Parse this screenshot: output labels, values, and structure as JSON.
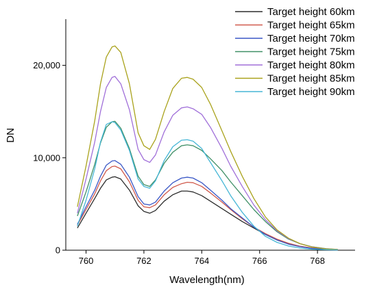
{
  "chart_data": {
    "type": "line",
    "title": "",
    "xlabel": "Wavelength(nm)",
    "ylabel": "DN",
    "xlim": [
      759.3,
      769.3
    ],
    "ylim": [
      0,
      25000
    ],
    "x_ticks": [
      760,
      762,
      764,
      766,
      768
    ],
    "x_tick_labels": [
      "760",
      "762",
      "764",
      "766",
      "768"
    ],
    "y_ticks": [
      0,
      10000,
      20000
    ],
    "y_tick_labels": [
      "0",
      "10,000",
      "20,000"
    ],
    "grid": false,
    "legend_position": "top-right",
    "x": [
      759.7,
      760.0,
      760.3,
      760.5,
      760.7,
      760.9,
      761.0,
      761.2,
      761.5,
      761.8,
      762.0,
      762.2,
      762.4,
      762.7,
      763.0,
      763.3,
      763.5,
      763.7,
      764.0,
      764.3,
      764.7,
      765.0,
      765.4,
      765.8,
      766.2,
      766.6,
      767.0,
      767.4,
      767.8,
      768.3,
      768.7
    ],
    "series": [
      {
        "name": "Target height 60km",
        "color": "#2b2b2b",
        "values": [
          2400,
          4000,
          5600,
          6700,
          7600,
          7900,
          7950,
          7700,
          6500,
          4800,
          4200,
          4000,
          4300,
          5300,
          6000,
          6400,
          6400,
          6300,
          5900,
          5300,
          4500,
          3900,
          3100,
          2400,
          1700,
          1100,
          700,
          400,
          220,
          100,
          60
        ]
      },
      {
        "name": "Target height 65km",
        "color": "#d0594b",
        "values": [
          2700,
          4400,
          6100,
          7500,
          8600,
          9050,
          9100,
          8800,
          7400,
          5400,
          4700,
          4600,
          4900,
          6000,
          6800,
          7200,
          7350,
          7300,
          6900,
          6200,
          5200,
          4400,
          3400,
          2500,
          1800,
          1200,
          750,
          430,
          240,
          110,
          60
        ]
      },
      {
        "name": "Target height 70km",
        "color": "#3957c6",
        "values": [
          2800,
          4700,
          6500,
          8000,
          9200,
          9650,
          9700,
          9300,
          7900,
          5800,
          5000,
          4900,
          5200,
          6400,
          7300,
          7800,
          7900,
          7800,
          7300,
          6500,
          5400,
          4500,
          3500,
          2500,
          1700,
          1100,
          650,
          380,
          200,
          90,
          50
        ]
      },
      {
        "name": "Target height 75km",
        "color": "#3f8f66",
        "values": [
          3700,
          6300,
          9300,
          11600,
          13300,
          13900,
          13950,
          13200,
          11000,
          8000,
          7100,
          6900,
          7600,
          9400,
          10600,
          11300,
          11400,
          11300,
          10800,
          9900,
          8600,
          7400,
          5900,
          4400,
          3100,
          2000,
          1200,
          700,
          380,
          160,
          80
        ]
      },
      {
        "name": "Target height 80km",
        "color": "#a06fd9",
        "values": [
          4000,
          7700,
          11700,
          15000,
          17600,
          18700,
          18800,
          18000,
          15200,
          10900,
          9800,
          9500,
          10300,
          12800,
          14600,
          15400,
          15500,
          15300,
          14700,
          13300,
          11000,
          9100,
          6900,
          4900,
          3300,
          2100,
          1250,
          700,
          370,
          150,
          70
        ]
      },
      {
        "name": "Target height 85km",
        "color": "#a9a21b",
        "values": [
          4700,
          9100,
          14000,
          18000,
          20900,
          22000,
          22100,
          21400,
          18000,
          12700,
          11300,
          10900,
          12000,
          15000,
          17500,
          18600,
          18700,
          18500,
          17600,
          15800,
          12900,
          10700,
          8000,
          5600,
          3600,
          2200,
          1300,
          700,
          350,
          140,
          60
        ]
      },
      {
        "name": "Target height 90km",
        "color": "#45b6d6",
        "values": [
          2600,
          5400,
          8800,
          11700,
          13600,
          13900,
          13800,
          13000,
          10800,
          7700,
          6900,
          6700,
          7500,
          9700,
          11200,
          11900,
          11950,
          11800,
          11000,
          9500,
          7500,
          5900,
          4100,
          2600,
          1500,
          850,
          450,
          230,
          110,
          50,
          30
        ]
      }
    ]
  }
}
